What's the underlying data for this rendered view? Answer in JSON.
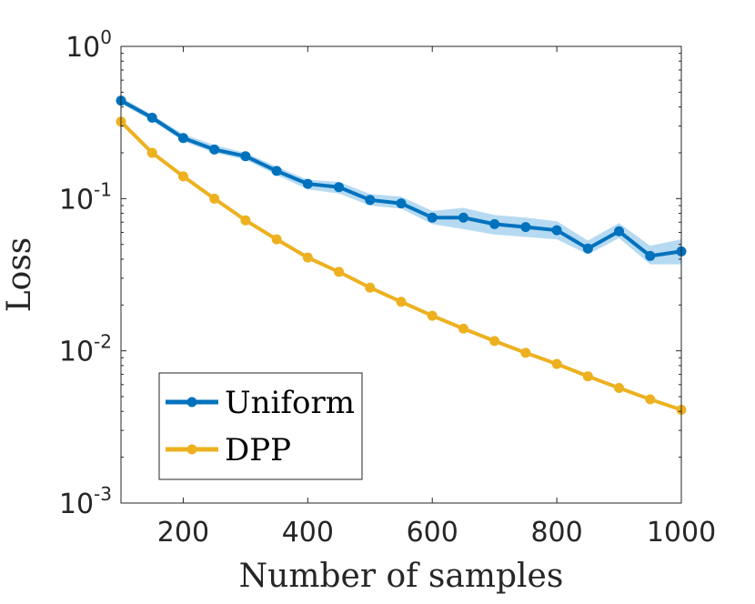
{
  "chart_data": {
    "type": "line",
    "title": "",
    "xlabel": "Number of samples",
    "ylabel": "Loss",
    "xlim": [
      100,
      1000
    ],
    "ylim": [
      0.001,
      1
    ],
    "yscale": "log",
    "x_ticks": [
      {
        "value": 200,
        "label": "200"
      },
      {
        "value": 400,
        "label": "400"
      },
      {
        "value": 600,
        "label": "600"
      },
      {
        "value": 800,
        "label": "800"
      },
      {
        "value": 1000,
        "label": "1000"
      }
    ],
    "y_ticks": [
      {
        "value": 1,
        "base": "10",
        "exp": "0"
      },
      {
        "value": 0.1,
        "base": "10",
        "exp": "-1"
      },
      {
        "value": 0.01,
        "base": "10",
        "exp": "-2"
      },
      {
        "value": 0.001,
        "base": "10",
        "exp": "-3"
      }
    ],
    "x": [
      100,
      150,
      200,
      250,
      300,
      350,
      400,
      450,
      500,
      550,
      600,
      650,
      700,
      750,
      800,
      850,
      900,
      950,
      1000
    ],
    "series": [
      {
        "name": "Uniform",
        "color": "#0072BD",
        "band_color": "#A9D3F0",
        "values": [
          0.44,
          0.34,
          0.25,
          0.21,
          0.19,
          0.152,
          0.125,
          0.119,
          0.098,
          0.093,
          0.075,
          0.075,
          0.068,
          0.065,
          0.062,
          0.047,
          0.061,
          0.042,
          0.045
        ],
        "lower": [
          0.42,
          0.325,
          0.238,
          0.2,
          0.18,
          0.143,
          0.115,
          0.108,
          0.09,
          0.086,
          0.068,
          0.063,
          0.058,
          0.056,
          0.054,
          0.043,
          0.055,
          0.037,
          0.037
        ],
        "upper": [
          0.465,
          0.355,
          0.265,
          0.225,
          0.2,
          0.162,
          0.133,
          0.129,
          0.107,
          0.103,
          0.083,
          0.087,
          0.078,
          0.075,
          0.071,
          0.053,
          0.069,
          0.049,
          0.054
        ]
      },
      {
        "name": "DPP",
        "color": "#EDB120",
        "values": [
          0.32,
          0.2,
          0.14,
          0.1,
          0.072,
          0.054,
          0.041,
          0.033,
          0.026,
          0.021,
          0.017,
          0.014,
          0.0116,
          0.0097,
          0.0082,
          0.0068,
          0.0057,
          0.0048,
          0.0041
        ]
      }
    ],
    "legend": {
      "location": "bottom-left",
      "entries": [
        "Uniform",
        "DPP"
      ]
    }
  }
}
